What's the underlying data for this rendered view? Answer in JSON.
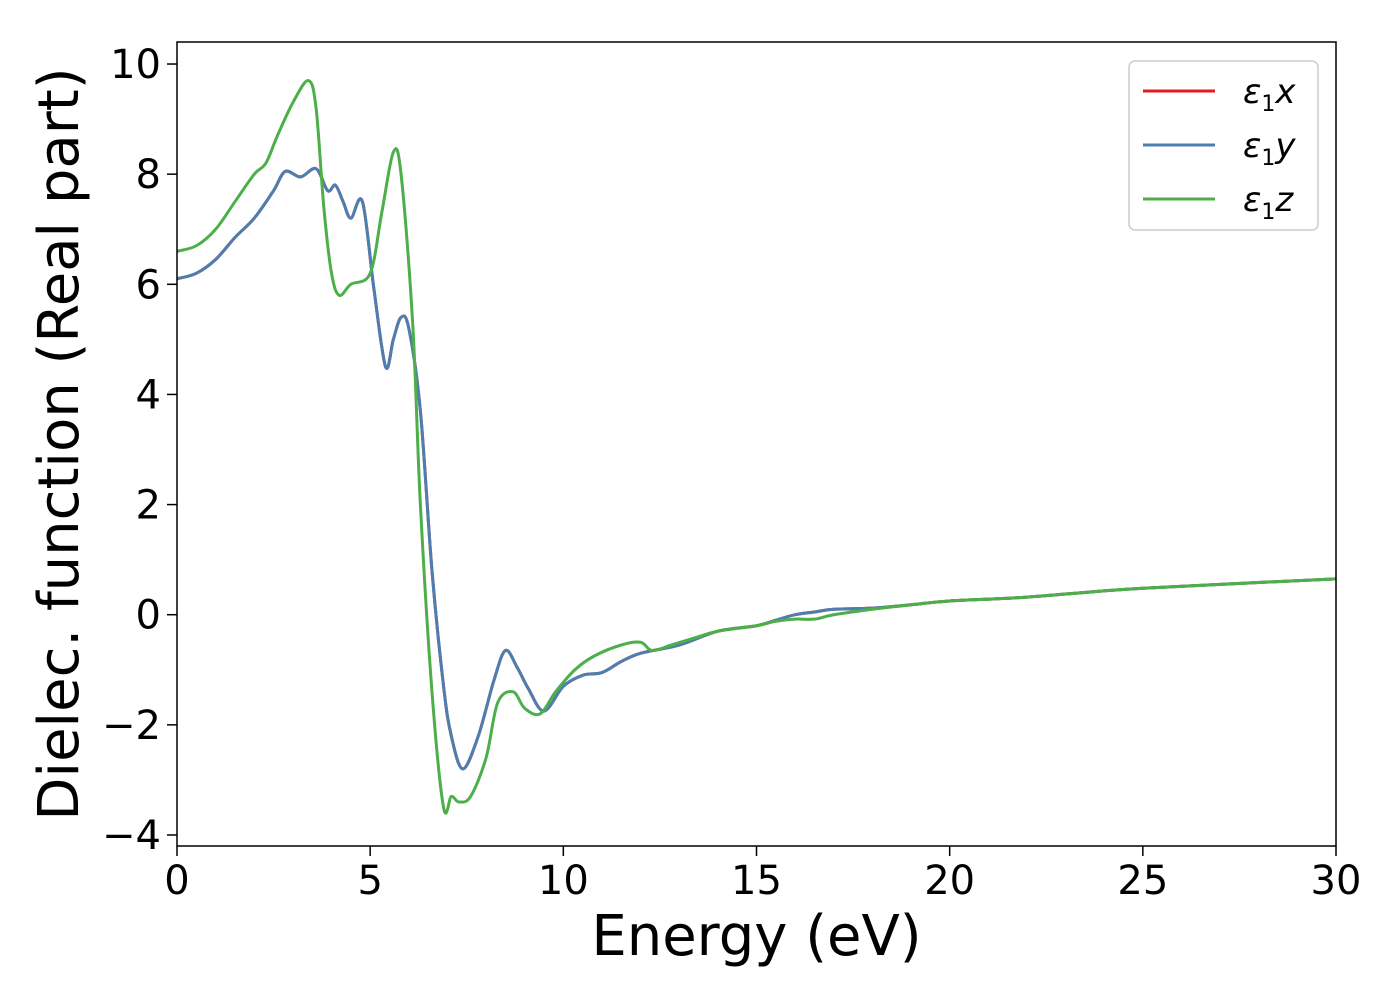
{
  "chart_data": {
    "type": "line",
    "title": "",
    "xlabel": "Energy (eV)",
    "ylabel": "Dielec. function (Real part)",
    "xlim": [
      0,
      30
    ],
    "ylim": [
      -4.2,
      10.4
    ],
    "xticks": [
      0,
      5,
      10,
      15,
      20,
      25,
      30
    ],
    "yticks": [
      -4,
      -2,
      0,
      2,
      4,
      6,
      8,
      10
    ],
    "xtick_labels": [
      "0",
      "5",
      "10",
      "15",
      "20",
      "25",
      "30"
    ],
    "ytick_labels": [
      "−4",
      "−2",
      "0",
      "2",
      "4",
      "6",
      "8",
      "10"
    ],
    "grid": false,
    "legend_position": "top-right",
    "series": [
      {
        "name": "ε₁x",
        "legend_base": "ε",
        "legend_sub": "1",
        "legend_suffix": "x",
        "color": "#e41a1c",
        "x": [
          0,
          0.5,
          1,
          1.5,
          2,
          2.5,
          2.8,
          3.2,
          3.6,
          3.9,
          4.1,
          4.3,
          4.5,
          4.8,
          5.1,
          5.4,
          5.6,
          5.8,
          6.0,
          6.3,
          6.6,
          6.9,
          7.1,
          7.4,
          7.8,
          8.2,
          8.5,
          8.8,
          9.1,
          9.5,
          10,
          10.5,
          11,
          11.5,
          12,
          13,
          14,
          15,
          15.5,
          16,
          16.5,
          17,
          18,
          19,
          20,
          22,
          25,
          30
        ],
        "y": [
          6.1,
          6.2,
          6.45,
          6.85,
          7.2,
          7.7,
          8.05,
          7.95,
          8.1,
          7.7,
          7.8,
          7.5,
          7.2,
          7.5,
          5.9,
          4.5,
          5.0,
          5.4,
          5.2,
          3.7,
          0.8,
          -1.3,
          -2.2,
          -2.8,
          -2.2,
          -1.2,
          -0.65,
          -0.95,
          -1.35,
          -1.75,
          -1.3,
          -1.1,
          -1.05,
          -0.85,
          -0.7,
          -0.55,
          -0.3,
          -0.2,
          -0.1,
          0.0,
          0.05,
          0.1,
          0.12,
          0.18,
          0.25,
          0.32,
          0.48,
          0.65
        ]
      },
      {
        "name": "ε₁y",
        "legend_base": "ε",
        "legend_sub": "1",
        "legend_suffix": "y",
        "color": "#4c7fb0",
        "x": [
          0,
          0.5,
          1,
          1.5,
          2,
          2.5,
          2.8,
          3.2,
          3.6,
          3.9,
          4.1,
          4.3,
          4.5,
          4.8,
          5.1,
          5.4,
          5.6,
          5.8,
          6.0,
          6.3,
          6.6,
          6.9,
          7.1,
          7.4,
          7.8,
          8.2,
          8.5,
          8.8,
          9.1,
          9.5,
          10,
          10.5,
          11,
          11.5,
          12,
          13,
          14,
          15,
          15.5,
          16,
          16.5,
          17,
          18,
          19,
          20,
          22,
          25,
          30
        ],
        "y": [
          6.1,
          6.2,
          6.45,
          6.85,
          7.2,
          7.7,
          8.05,
          7.95,
          8.1,
          7.7,
          7.8,
          7.5,
          7.2,
          7.5,
          5.9,
          4.5,
          5.0,
          5.4,
          5.2,
          3.7,
          0.8,
          -1.3,
          -2.2,
          -2.8,
          -2.2,
          -1.2,
          -0.65,
          -0.95,
          -1.35,
          -1.75,
          -1.3,
          -1.1,
          -1.05,
          -0.85,
          -0.7,
          -0.55,
          -0.3,
          -0.2,
          -0.1,
          0.0,
          0.05,
          0.1,
          0.12,
          0.18,
          0.25,
          0.32,
          0.48,
          0.65
        ]
      },
      {
        "name": "ε₁z",
        "legend_base": "ε",
        "legend_sub": "1",
        "legend_suffix": "z",
        "color": "#4daf4a",
        "x": [
          0,
          0.5,
          1,
          1.5,
          2,
          2.3,
          2.6,
          3.0,
          3.4,
          3.6,
          3.8,
          4.0,
          4.2,
          4.5,
          5.0,
          5.3,
          5.6,
          5.8,
          6.1,
          6.3,
          6.6,
          6.9,
          7.1,
          7.3,
          7.6,
          8.0,
          8.3,
          8.7,
          9.0,
          9.4,
          9.8,
          10.3,
          10.8,
          11.5,
          12.0,
          12.3,
          12.8,
          13.5,
          14.0,
          15.0,
          15.5,
          16.0,
          16.5,
          17.0,
          18.0,
          19.0,
          20.0,
          22.0,
          25.0,
          30.0
        ],
        "y": [
          6.6,
          6.7,
          7.0,
          7.5,
          8.0,
          8.2,
          8.7,
          9.3,
          9.7,
          9.2,
          7.4,
          6.2,
          5.8,
          6.0,
          6.2,
          7.3,
          8.4,
          8.0,
          5.3,
          2.0,
          -1.4,
          -3.5,
          -3.3,
          -3.4,
          -3.3,
          -2.6,
          -1.6,
          -1.4,
          -1.7,
          -1.8,
          -1.4,
          -1.0,
          -0.75,
          -0.55,
          -0.5,
          -0.65,
          -0.55,
          -0.4,
          -0.3,
          -0.2,
          -0.12,
          -0.08,
          -0.08,
          0.0,
          0.1,
          0.18,
          0.25,
          0.32,
          0.48,
          0.65
        ]
      }
    ]
  }
}
